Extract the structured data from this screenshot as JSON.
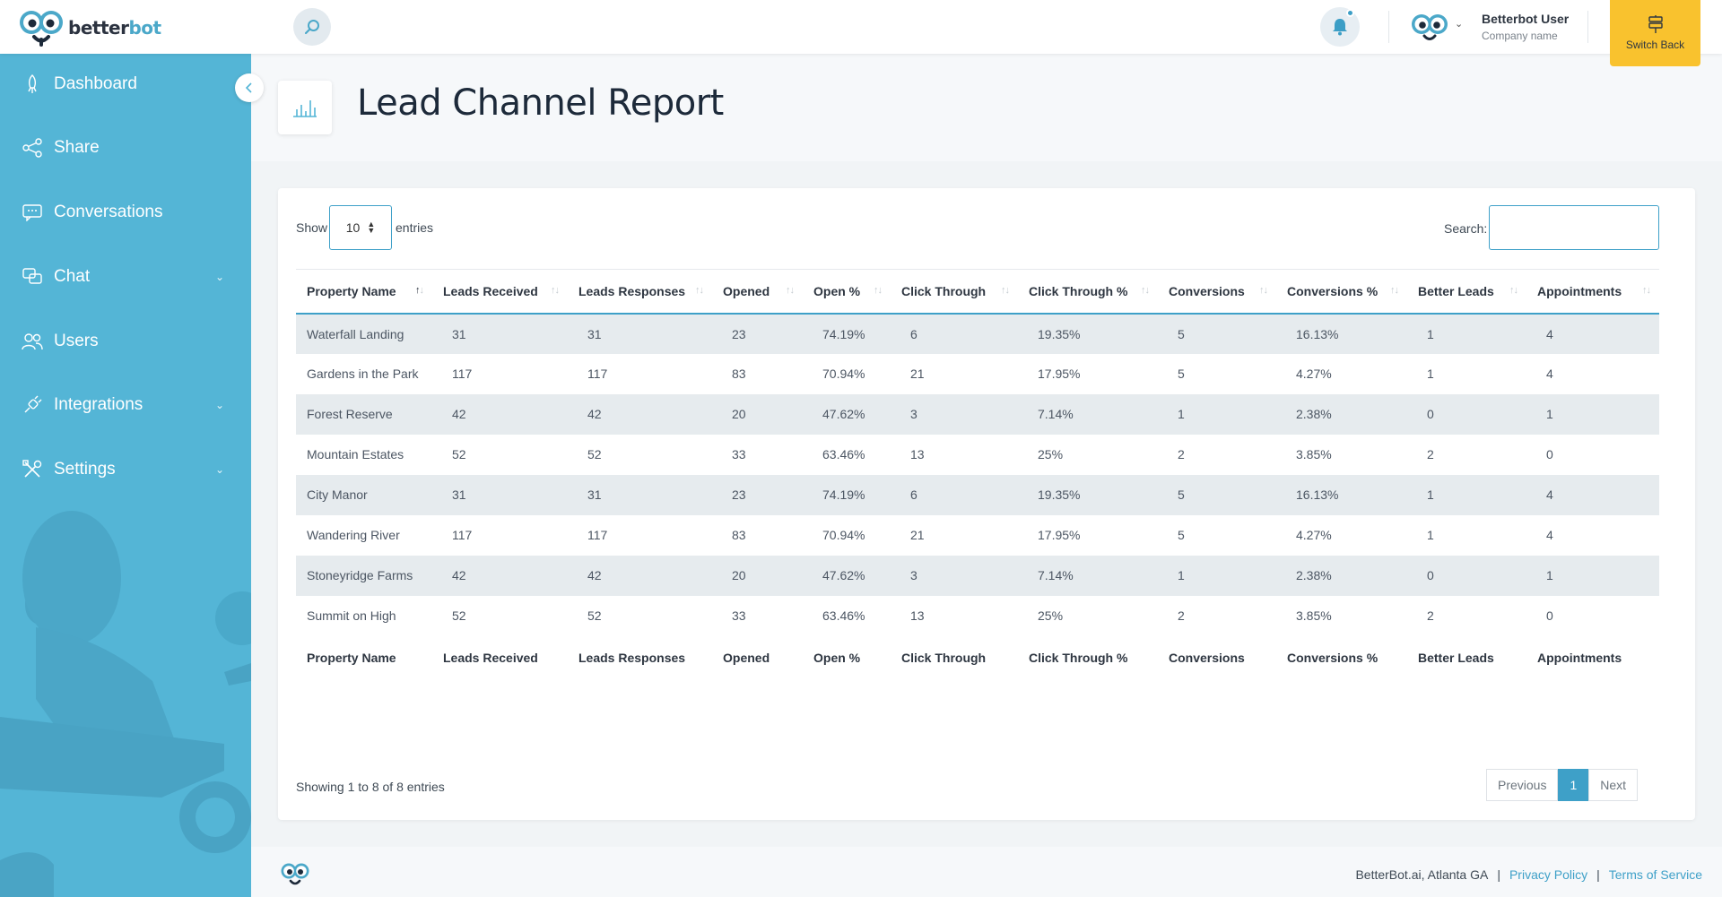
{
  "header": {
    "logo_prefix": "better",
    "logo_suffix": "bot",
    "user_name": "Betterbot User",
    "user_company": "Company name",
    "switch_label": "Switch Back"
  },
  "sidebar": {
    "items": [
      {
        "label": "Dashboard",
        "icon": "rocket-icon"
      },
      {
        "label": "Share",
        "icon": "share-icon"
      },
      {
        "label": "Conversations",
        "icon": "message-icon"
      },
      {
        "label": "Chat",
        "icon": "chat-icon",
        "has_submenu": true
      },
      {
        "label": "Users",
        "icon": "users-icon"
      },
      {
        "label": "Integrations",
        "icon": "plug-icon",
        "has_submenu": true
      },
      {
        "label": "Settings",
        "icon": "tools-icon",
        "has_submenu": true
      }
    ]
  },
  "page": {
    "title": "Lead Channel Report"
  },
  "table_controls": {
    "show_label": "Show",
    "entries_value": "10",
    "entries_label": "entries",
    "search_label": "Search:",
    "search_value": ""
  },
  "table": {
    "columns": [
      "Property Name",
      "Leads Received",
      "Leads Responses",
      "Opened",
      "Open %",
      "Click Through",
      "Click Through %",
      "Conversions",
      "Conversions %",
      "Better Leads",
      "Appointments"
    ],
    "rows": [
      [
        "Waterfall Landing",
        "31",
        "31",
        "23",
        "74.19%",
        "6",
        "19.35%",
        "5",
        "16.13%",
        "1",
        "4"
      ],
      [
        "Gardens in the Park",
        "117",
        "117",
        "83",
        "70.94%",
        "21",
        "17.95%",
        "5",
        "4.27%",
        "1",
        "4"
      ],
      [
        "Forest Reserve",
        "42",
        "42",
        "20",
        "47.62%",
        "3",
        "7.14%",
        "1",
        "2.38%",
        "0",
        "1"
      ],
      [
        "Mountain Estates",
        "52",
        "52",
        "33",
        "63.46%",
        "13",
        "25%",
        "2",
        "3.85%",
        "2",
        "0"
      ],
      [
        "City Manor",
        "31",
        "31",
        "23",
        "74.19%",
        "6",
        "19.35%",
        "5",
        "16.13%",
        "1",
        "4"
      ],
      [
        "Wandering River",
        "117",
        "117",
        "83",
        "70.94%",
        "21",
        "17.95%",
        "5",
        "4.27%",
        "1",
        "4"
      ],
      [
        "Stoneyridge Farms",
        "42",
        "42",
        "20",
        "47.62%",
        "3",
        "7.14%",
        "1",
        "2.38%",
        "0",
        "1"
      ],
      [
        "Summit on High",
        "52",
        "52",
        "33",
        "63.46%",
        "13",
        "25%",
        "2",
        "3.85%",
        "2",
        "0"
      ]
    ]
  },
  "table_footer": {
    "showing": "Showing 1 to 8 of 8 entries",
    "previous": "Previous",
    "page": "1",
    "next": "Next"
  },
  "footer": {
    "company": "BetterBot.ai, Atlanta GA",
    "sep": "|",
    "privacy": "Privacy Policy",
    "terms": "Terms of Service"
  },
  "colors": {
    "sidebar": "#54b5d6",
    "accent": "#3ea0c8",
    "switch_button": "#f9c22e"
  }
}
